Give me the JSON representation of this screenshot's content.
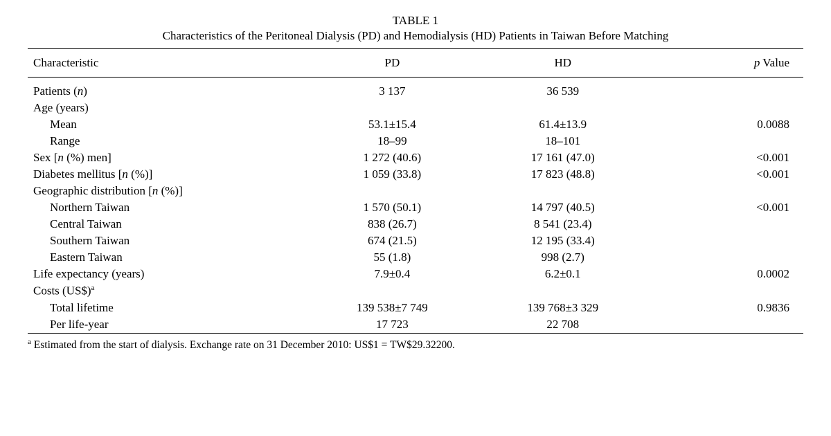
{
  "table": {
    "label": "TABLE 1",
    "title": "Characteristics of the Peritoneal Dialysis (PD) and Hemodialysis (HD) Patients in Taiwan Before Matching",
    "columns": {
      "characteristic": "Characteristic",
      "pd": "PD",
      "hd": "HD",
      "pvalue_prefix": "p",
      "pvalue_suffix": " Value"
    },
    "rows": {
      "patients": {
        "label_prefix": "Patients (",
        "label_n": "n",
        "label_suffix": ")",
        "pd": "3 137",
        "hd": "36 539",
        "p": ""
      },
      "age_header": {
        "label": "Age (years)"
      },
      "age_mean": {
        "label": "Mean",
        "pd": "53.1±15.4",
        "hd": "61.4±13.9",
        "p": "0.0088"
      },
      "age_range": {
        "label": "Range",
        "pd": "18–99",
        "hd": "18–101",
        "p": ""
      },
      "sex": {
        "label_prefix": "Sex [",
        "label_n": "n",
        "label_suffix": " (%) men]",
        "pd": "1 272 (40.6)",
        "hd": "17 161 (47.0)",
        "p": "<0.001"
      },
      "diabetes": {
        "label_prefix": "Diabetes mellitus [",
        "label_n": "n",
        "label_suffix": " (%)]",
        "pd": "1 059 (33.8)",
        "hd": "17 823 (48.8)",
        "p": "<0.001"
      },
      "geo_header": {
        "label_prefix": "Geographic distribution [",
        "label_n": "n",
        "label_suffix": " (%)]"
      },
      "geo_north": {
        "label": "Northern Taiwan",
        "pd": "1 570 (50.1)",
        "hd": "14 797 (40.5)",
        "p": "<0.001"
      },
      "geo_central": {
        "label": "Central Taiwan",
        "pd": "838 (26.7)",
        "hd": "8 541 (23.4)",
        "p": ""
      },
      "geo_south": {
        "label": "Southern Taiwan",
        "pd": "674 (21.5)",
        "hd": "12 195 (33.4)",
        "p": ""
      },
      "geo_east": {
        "label": "Eastern Taiwan",
        "pd": "55 (1.8)",
        "hd": "998 (2.7)",
        "p": ""
      },
      "life_exp": {
        "label": "Life expectancy (years)",
        "pd": "7.9±0.4",
        "hd": "6.2±0.1",
        "p": "0.0002"
      },
      "costs_header": {
        "label": "Costs (US$)",
        "sup": "a"
      },
      "costs_total": {
        "label": "Total lifetime",
        "pd": "139 538±7 749",
        "hd": "139 768±3 329",
        "p": "0.9836"
      },
      "costs_perlife": {
        "label": "Per life-year",
        "pd": "17 723",
        "hd": "22 708",
        "p": ""
      }
    },
    "footnote": {
      "sup": "a",
      "text": " Estimated from the start of dialysis. Exchange rate on 31 December 2010: US$1 = TW$29.32200."
    }
  }
}
